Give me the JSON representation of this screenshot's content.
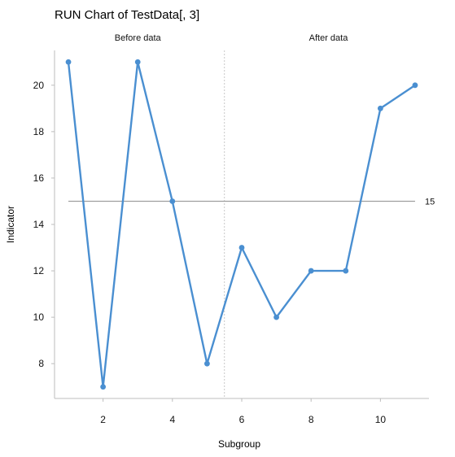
{
  "chart_data": {
    "type": "line",
    "title": "RUN Chart of TestData[, 3]",
    "xlabel": "Subgroup",
    "ylabel": "Indicator",
    "x": [
      1,
      2,
      3,
      4,
      5,
      6,
      7,
      8,
      9,
      10,
      11
    ],
    "series": [
      {
        "values": [
          21,
          7,
          21,
          15,
          8,
          13,
          10,
          12,
          12,
          19,
          20
        ],
        "color": "#4a8fd1"
      }
    ],
    "center_line": {
      "value": 15,
      "label": "15",
      "color": "#9e9e9e"
    },
    "phases": [
      {
        "label": "Before data",
        "from": 1,
        "to": 5
      },
      {
        "label": "After data",
        "from": 6,
        "to": 11
      }
    ],
    "phase_divider": 5.5,
    "xlim": [
      0.6,
      11.4
    ],
    "ylim": [
      6.5,
      21.5
    ],
    "xticks": [
      2,
      4,
      6,
      8,
      10
    ],
    "yticks": [
      8,
      10,
      12,
      14,
      16,
      18,
      20
    ],
    "grid": false
  }
}
